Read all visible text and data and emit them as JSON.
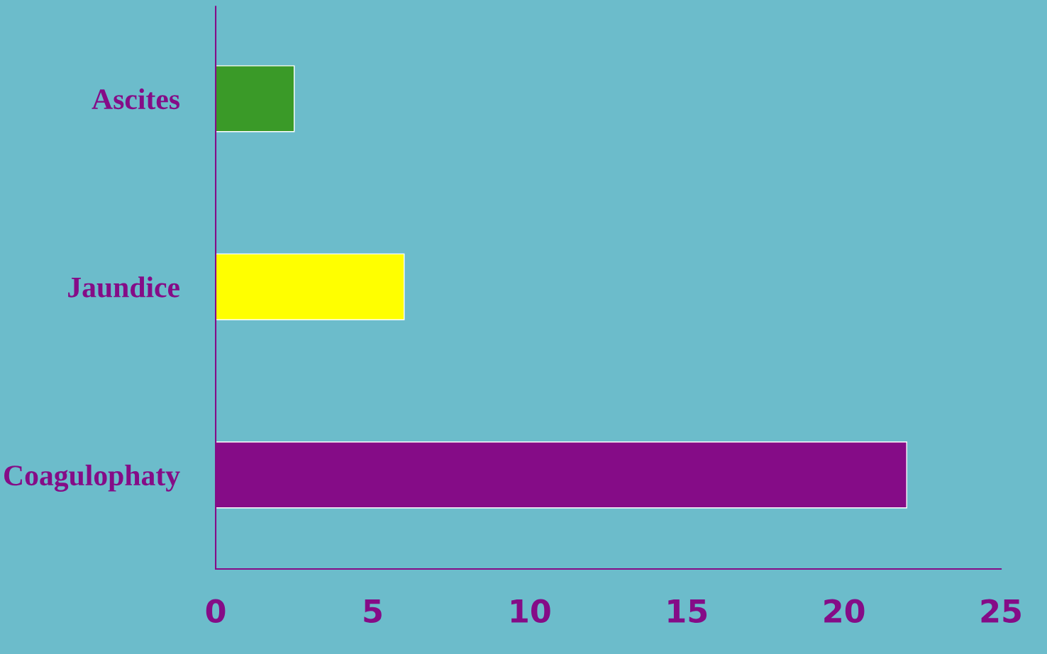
{
  "chart_data": {
    "type": "bar",
    "orientation": "horizontal",
    "categories": [
      "Ascites",
      "Jaundice",
      "Coagulophaty"
    ],
    "values": [
      2.5,
      6,
      22
    ],
    "colors": [
      "#3a9a28",
      "#ffff00",
      "#850c87"
    ],
    "xlim": [
      0,
      25
    ],
    "xticks": [
      0,
      5,
      10,
      15,
      20,
      25
    ],
    "grid": false
  }
}
